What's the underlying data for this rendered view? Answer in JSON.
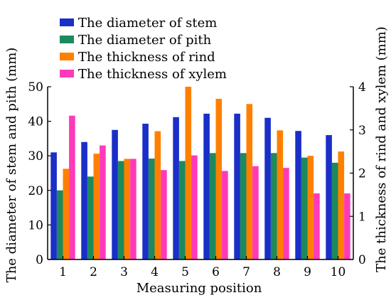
{
  "chart_data": {
    "type": "bar",
    "xlabel": "Measuring position",
    "ylabel_left": "The diameter of stem and pith (mm)",
    "ylabel_right": "The thickness of rind and xylem (mm)",
    "ylim_left": [
      0,
      50
    ],
    "ylim_right": [
      0,
      4
    ],
    "yticks_left": [
      "0",
      "10",
      "20",
      "30",
      "40",
      "50"
    ],
    "yticks_right": [
      "0",
      "1",
      "2",
      "3",
      "4"
    ],
    "categories": [
      "1",
      "2",
      "3",
      "4",
      "5",
      "6",
      "7",
      "8",
      "9",
      "10"
    ],
    "legend_position": "top-left",
    "grid": false,
    "series": [
      {
        "name": "The diameter of stem",
        "axis": "left",
        "color": "#1a2fc8",
        "values": [
          31,
          34,
          37.5,
          39.3,
          41.2,
          42.2,
          42.2,
          41,
          37.2,
          36
        ]
      },
      {
        "name": "The diameter of pith",
        "axis": "left",
        "color": "#1d8a5e",
        "values": [
          20,
          24,
          28.5,
          29.2,
          28.5,
          30.8,
          30.8,
          30.8,
          29.5,
          28
        ]
      },
      {
        "name": "The thickness of rind",
        "axis": "right",
        "color": "#ff8000",
        "values": [
          2.1,
          2.45,
          2.33,
          2.97,
          4.0,
          3.72,
          3.6,
          2.99,
          2.4,
          2.5
        ]
      },
      {
        "name": "The thickness of xylem",
        "axis": "right",
        "color": "#ff3ab8",
        "values": [
          3.33,
          2.64,
          2.33,
          2.07,
          2.41,
          2.05,
          2.16,
          2.12,
          1.53,
          1.53
        ]
      }
    ]
  }
}
